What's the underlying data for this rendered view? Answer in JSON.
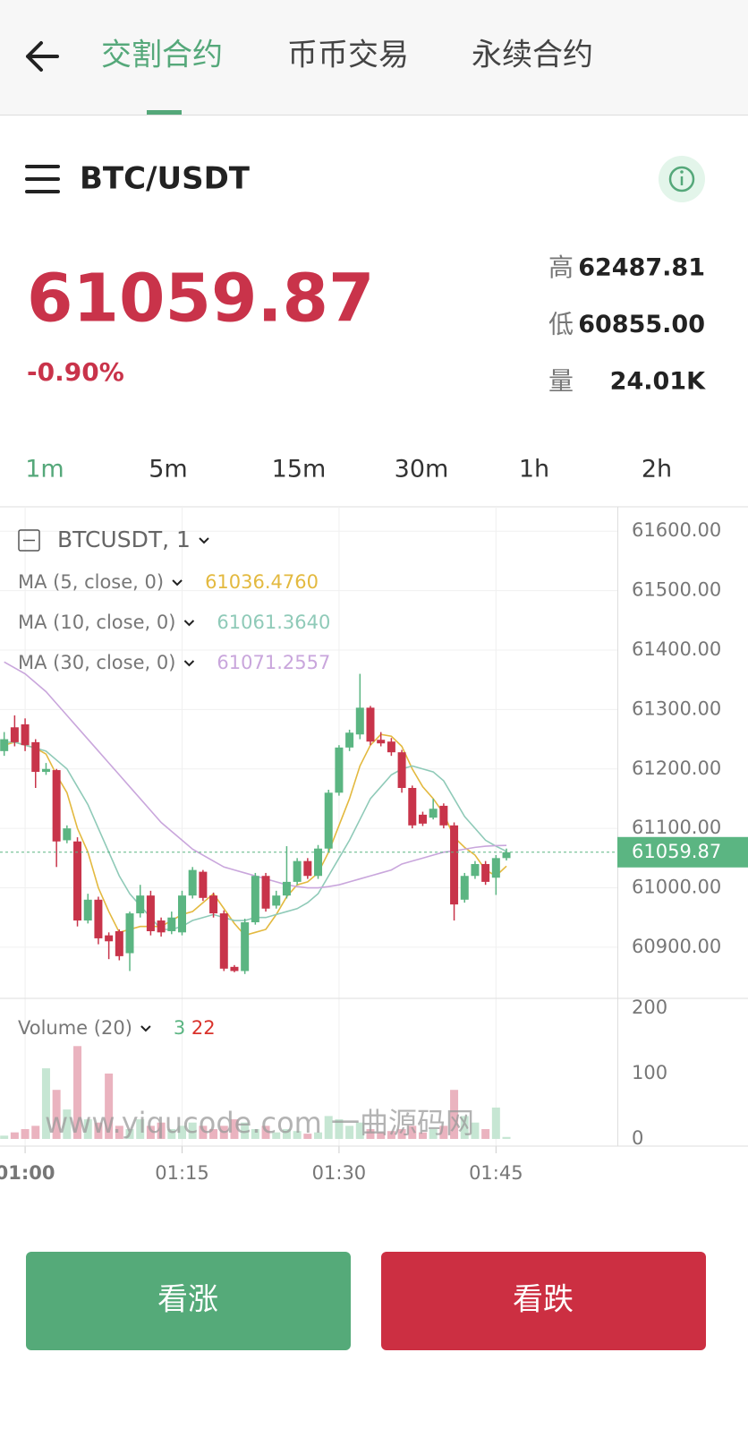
{
  "header": {
    "tabs": [
      "交割合约",
      "币币交易",
      "永续合约"
    ],
    "active_tab": 0
  },
  "market": {
    "symbol": "BTC/USDT",
    "price": "61059.87",
    "change": "-0.90%",
    "stats": [
      {
        "label": "高",
        "value": "62487.81"
      },
      {
        "label": "低",
        "value": "60855.00"
      },
      {
        "label": "量",
        "value": "24.01K"
      }
    ]
  },
  "intervals": {
    "items": [
      "1m",
      "5m",
      "15m",
      "30m",
      "1h",
      "2h"
    ],
    "active": 0
  },
  "chart_data": {
    "type": "candlestick",
    "legend": "BTCUSDT, 1",
    "up_color": "#5bb582",
    "down_color": "#c8344a",
    "xlim": [
      -2.4,
      56.6
    ],
    "xticks": [
      {
        "value": 0,
        "label": "01:00"
      },
      {
        "value": 15,
        "label": "01:15"
      },
      {
        "value": 30,
        "label": "01:30"
      },
      {
        "value": 45,
        "label": "01:45"
      }
    ],
    "ylim": [
      60814,
      61641
    ],
    "yticks": [
      {
        "value": 61600,
        "label": "61600.00"
      },
      {
        "value": 61500,
        "label": "61500.00"
      },
      {
        "value": 61400,
        "label": "61400.00"
      },
      {
        "value": 61300,
        "label": "61300.00"
      },
      {
        "value": 61200,
        "label": "61200.00"
      },
      {
        "value": 61100,
        "label": "61100.00"
      },
      {
        "value": 61000,
        "label": "61000.00"
      },
      {
        "value": 60900,
        "label": "60900.00"
      }
    ],
    "grid": true,
    "last_price": 61059.87,
    "candles": [
      {
        "x": -2,
        "open": 61230,
        "high": 61262,
        "low": 61222,
        "close": 61250
      },
      {
        "x": -1,
        "open": 61270,
        "high": 61290,
        "low": 61238,
        "close": 61245
      },
      {
        "x": 0,
        "open": 61275,
        "high": 61285,
        "low": 61230,
        "close": 61240
      },
      {
        "x": 1,
        "open": 61245,
        "high": 61250,
        "low": 61168,
        "close": 61195
      },
      {
        "x": 2,
        "open": 61195,
        "high": 61210,
        "low": 61190,
        "close": 61200
      },
      {
        "x": 3,
        "open": 61198,
        "high": 61200,
        "low": 61035,
        "close": 61078
      },
      {
        "x": 4,
        "open": 61080,
        "high": 61105,
        "low": 61075,
        "close": 61100
      },
      {
        "x": 5,
        "open": 61078,
        "high": 61085,
        "low": 60935,
        "close": 60945
      },
      {
        "x": 6,
        "open": 60945,
        "high": 60990,
        "low": 60940,
        "close": 60980
      },
      {
        "x": 7,
        "open": 60980,
        "high": 60985,
        "low": 60905,
        "close": 60915
      },
      {
        "x": 8,
        "open": 60920,
        "high": 60925,
        "low": 60880,
        "close": 60910
      },
      {
        "x": 9,
        "open": 60927,
        "high": 60930,
        "low": 60878,
        "close": 60885
      },
      {
        "x": 10,
        "open": 60890,
        "high": 60960,
        "low": 60860,
        "close": 60957
      },
      {
        "x": 11,
        "open": 60957,
        "high": 61005,
        "low": 60950,
        "close": 60987
      },
      {
        "x": 12,
        "open": 60987,
        "high": 60995,
        "low": 60920,
        "close": 60927
      },
      {
        "x": 13,
        "open": 60945,
        "high": 60950,
        "low": 60918,
        "close": 60925
      },
      {
        "x": 14,
        "open": 60927,
        "high": 60960,
        "low": 60922,
        "close": 60950
      },
      {
        "x": 15,
        "open": 60925,
        "high": 60995,
        "low": 60920,
        "close": 60987
      },
      {
        "x": 16,
        "open": 60987,
        "high": 61035,
        "low": 60982,
        "close": 61030
      },
      {
        "x": 17,
        "open": 61027,
        "high": 61030,
        "low": 60978,
        "close": 60983
      },
      {
        "x": 18,
        "open": 60987,
        "high": 60992,
        "low": 60950,
        "close": 60957
      },
      {
        "x": 19,
        "open": 60957,
        "high": 60962,
        "low": 60860,
        "close": 60864
      },
      {
        "x": 20,
        "open": 60867,
        "high": 60870,
        "low": 60858,
        "close": 60860
      },
      {
        "x": 21,
        "open": 60860,
        "high": 60948,
        "low": 60855,
        "close": 60942
      },
      {
        "x": 22,
        "open": 60942,
        "high": 61025,
        "low": 60938,
        "close": 61020
      },
      {
        "x": 23,
        "open": 61020,
        "high": 61025,
        "low": 60960,
        "close": 60965
      },
      {
        "x": 24,
        "open": 60970,
        "high": 60995,
        "low": 60965,
        "close": 60987
      },
      {
        "x": 25,
        "open": 60987,
        "high": 61070,
        "low": 60982,
        "close": 61010
      },
      {
        "x": 26,
        "open": 61010,
        "high": 61050,
        "low": 61005,
        "close": 61045
      },
      {
        "x": 27,
        "open": 61045,
        "high": 61050,
        "low": 61015,
        "close": 61020
      },
      {
        "x": 28,
        "open": 61020,
        "high": 61072,
        "low": 61015,
        "close": 61066
      },
      {
        "x": 29,
        "open": 61066,
        "high": 61165,
        "low": 61060,
        "close": 61160
      },
      {
        "x": 30,
        "open": 61160,
        "high": 61240,
        "low": 61155,
        "close": 61236
      },
      {
        "x": 31,
        "open": 61236,
        "high": 61266,
        "low": 61230,
        "close": 61261
      },
      {
        "x": 32,
        "open": 61258,
        "high": 61360,
        "low": 61250,
        "close": 61303
      },
      {
        "x": 33,
        "open": 61303,
        "high": 61306,
        "low": 61240,
        "close": 61246
      },
      {
        "x": 34,
        "open": 61249,
        "high": 61262,
        "low": 61238,
        "close": 61243
      },
      {
        "x": 35,
        "open": 61246,
        "high": 61252,
        "low": 61222,
        "close": 61228
      },
      {
        "x": 36,
        "open": 61228,
        "high": 61232,
        "low": 61160,
        "close": 61168
      },
      {
        "x": 37,
        "open": 61168,
        "high": 61172,
        "low": 61100,
        "close": 61105
      },
      {
        "x": 38,
        "open": 61123,
        "high": 61128,
        "low": 61104,
        "close": 61108
      },
      {
        "x": 39,
        "open": 61118,
        "high": 61150,
        "low": 61115,
        "close": 61133
      },
      {
        "x": 40,
        "open": 61138,
        "high": 61142,
        "low": 61100,
        "close": 61105
      },
      {
        "x": 41,
        "open": 61105,
        "high": 61110,
        "low": 60945,
        "close": 60972
      },
      {
        "x": 42,
        "open": 60980,
        "high": 61025,
        "low": 60975,
        "close": 61020
      },
      {
        "x": 43,
        "open": 61020,
        "high": 61045,
        "low": 61015,
        "close": 61040
      },
      {
        "x": 44,
        "open": 61040,
        "high": 61045,
        "low": 61005,
        "close": 61010
      },
      {
        "x": 45,
        "open": 61017,
        "high": 61055,
        "low": 60988,
        "close": 61050
      },
      {
        "x": 46,
        "open": 61050,
        "high": 61066,
        "low": 61046,
        "close": 61059.87
      }
    ],
    "series": [
      {
        "name": "MA (5, close, 0)",
        "color": "#e3b93f",
        "value_label": "61036.4760",
        "values": [
          61240,
          61245,
          61240,
          61235,
          61225,
          61190,
          61160,
          61100,
          61060,
          61000,
          60960,
          60925,
          60930,
          60935,
          60935,
          60935,
          60945,
          60955,
          60960,
          60975,
          60990,
          60965,
          60940,
          60920,
          60925,
          60930,
          60955,
          60985,
          61005,
          61010,
          61025,
          61060,
          61105,
          61150,
          61205,
          61240,
          61258,
          61255,
          61238,
          61200,
          61170,
          61150,
          61125,
          61085,
          61068,
          61055,
          61030,
          61020,
          61036.476
        ]
      },
      {
        "name": "MA (10, close, 0)",
        "color": "#8fcab8",
        "value_label": "61061.3640",
        "values": [
          61245,
          61245,
          61240,
          61235,
          61230,
          61215,
          61200,
          61170,
          61140,
          61100,
          61060,
          61020,
          60990,
          60970,
          60950,
          60930,
          60930,
          60935,
          60945,
          60950,
          60955,
          60950,
          60945,
          60945,
          60950,
          60950,
          60955,
          60960,
          60965,
          60975,
          60990,
          61020,
          61050,
          61080,
          61115,
          61150,
          61170,
          61190,
          61200,
          61205,
          61200,
          61195,
          61180,
          61150,
          61120,
          61100,
          61080,
          61070,
          61061.364
        ]
      },
      {
        "name": "MA (30, close, 0)",
        "color": "#c9a6dc",
        "value_label": "61071.2557",
        "values": [
          61380,
          61370,
          61360,
          61345,
          61330,
          61310,
          61290,
          61270,
          61250,
          61230,
          61210,
          61190,
          61170,
          61150,
          61130,
          61110,
          61095,
          61080,
          61065,
          61055,
          61045,
          61035,
          61030,
          61025,
          61020,
          61015,
          61010,
          61005,
          61002,
          61000,
          61000,
          61002,
          61005,
          61010,
          61015,
          61020,
          61025,
          61030,
          61040,
          61045,
          61050,
          61055,
          61060,
          61062,
          61065,
          61068,
          61070,
          61071,
          61071.2557
        ]
      }
    ],
    "volume": {
      "name": "Volume (20)",
      "ma_value": 22,
      "ylim": [
        -11,
        215
      ],
      "yticks": [
        200,
        100,
        0
      ],
      "up_color": "#c6e6d3",
      "down_color": "#eab3bf",
      "values": [
        5,
        10,
        15,
        20,
        108,
        75,
        45,
        142,
        30,
        25,
        100,
        20,
        15,
        30,
        20,
        25,
        15,
        20,
        25,
        20,
        15,
        20,
        30,
        25,
        15,
        20,
        10,
        15,
        12,
        8,
        10,
        35,
        30,
        20,
        25,
        15,
        10,
        12,
        15,
        20,
        10,
        15,
        20,
        75,
        35,
        25,
        15,
        48,
        3
      ]
    },
    "watermark": "www.yiqucode.com   一曲源码网"
  },
  "buttons": {
    "long": "看涨",
    "short": "看跌"
  }
}
